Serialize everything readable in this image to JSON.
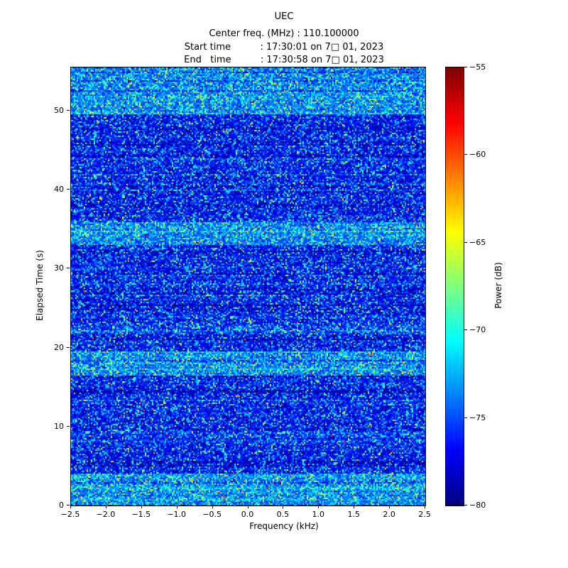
{
  "title": "UEC",
  "header": {
    "center_freq_line": "Center freq. (MHz) : 110.100000",
    "start_time_line": "Start time          : 17:30:01 on 7□ 01, 2023",
    "end_time_line": "End   time          : 17:30:58 on 7□ 01, 2023"
  },
  "chart_data": {
    "type": "heatmap",
    "title": "UEC",
    "subtitle_lines": [
      "Center freq. (MHz) : 110.100000",
      "Start time          : 17:30:01 on 7□ 01, 2023",
      "End   time          : 17:30:58 on 7□ 01, 2023"
    ],
    "xlabel": "Frequency (kHz)",
    "ylabel": "Elapsed Time (s)",
    "colorbar_label": "Power (dB)",
    "colormap": "jet",
    "x_range_khz": [
      -2.5,
      2.5
    ],
    "y_range_s": [
      0,
      55.5
    ],
    "power_range_db": [
      -80,
      -55
    ],
    "xticks": [
      -2.5,
      -2.0,
      -1.5,
      -1.0,
      -0.5,
      0.0,
      0.5,
      1.0,
      1.5,
      2.0,
      2.5
    ],
    "xtick_labels": [
      "−2.5",
      "−2.0",
      "−1.5",
      "−1.0",
      "−0.5",
      "0.0",
      "0.5",
      "1.0",
      "1.5",
      "2.0",
      "2.5"
    ],
    "yticks": [
      0,
      10,
      20,
      30,
      40,
      50
    ],
    "ytick_labels": [
      "0",
      "10",
      "20",
      "30",
      "40",
      "50"
    ],
    "cticks": [
      -55,
      -60,
      -65,
      -70,
      -75,
      -80
    ],
    "ctick_labels": [
      "−55",
      "−60",
      "−65",
      "−70",
      "−75",
      "−80"
    ],
    "background_character": "random noise mostly -80 to -72 dB (dark/medium blue) with scattered cyan-green speckles",
    "bright_bands_s": [
      [
        0,
        4
      ],
      [
        16.5,
        19.5
      ],
      [
        33,
        36
      ],
      [
        49.5,
        55.5
      ]
    ],
    "weak_bands_s": [
      [
        8,
        9.5
      ],
      [
        21.5,
        23
      ]
    ],
    "seed": 1337
  }
}
